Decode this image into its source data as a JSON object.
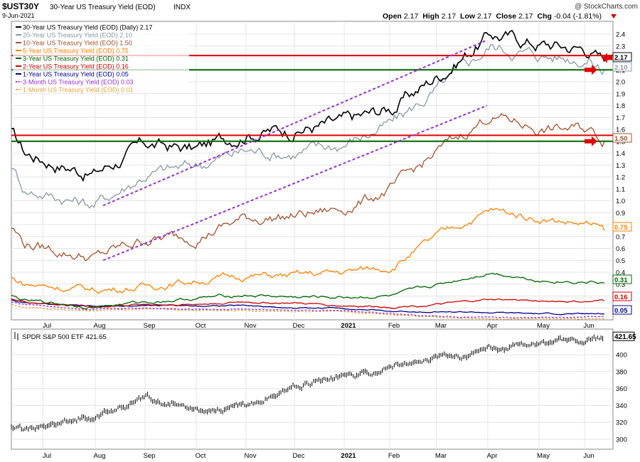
{
  "header": {
    "symbol": "$UST30Y",
    "name": "30-Year US Treasury Yield (EOD)",
    "exchange": "INDX",
    "date": "9-Jun-2021",
    "watermark": "@ StockCharts.com",
    "ohlc": {
      "open_label": "Open",
      "open": "2.17",
      "high_label": "High",
      "high": "2.17",
      "low_label": "Low",
      "low": "2.17",
      "close_label": "Close",
      "close": "2.17",
      "chg_label": "Chg",
      "chg": "-0.04 (-1.81%)"
    },
    "dropdown_icon": "triangle-down-icon"
  },
  "x_axis": {
    "labels": [
      "Jul",
      "Aug",
      "Sep",
      "Oct",
      "Nov",
      "Dec",
      "2021",
      "Feb",
      "Mar",
      "Apr",
      "May",
      "Jun"
    ]
  },
  "chart_data": [
    {
      "type": "line",
      "title": "30-Year US Treasury Yield (EOD)",
      "ylim": [
        0.0,
        2.5
      ],
      "y_ticks": [
        "2.4",
        "2.3",
        "2.2",
        "2.1",
        "2.0",
        "1.9",
        "1.8",
        "1.7",
        "1.6",
        "1.5",
        "1.4",
        "1.3",
        "1.2",
        "1.1",
        "1.0",
        "0.9",
        "0.8",
        "0.7",
        "0.6",
        "0.5",
        "0.4",
        "0.3",
        "0.2",
        "0.1"
      ],
      "x_dates": [
        "Jun-15",
        "Jul-1",
        "Aug-1",
        "Sep-1",
        "Oct-1",
        "Nov-1",
        "Dec-1",
        "Jan-1",
        "Feb-1",
        "Mar-1",
        "Apr-1",
        "May-1",
        "Jun-1",
        "Jun-9"
      ],
      "series": [
        {
          "name": "30-Year US Treasury Yield (EOD) (Daily) 2.17",
          "color": "#000000",
          "dash": false,
          "values": [
            1.57,
            1.4,
            1.23,
            1.47,
            1.43,
            1.58,
            1.6,
            1.65,
            1.78,
            2.07,
            2.4,
            2.32,
            2.28,
            2.17
          ]
        },
        {
          "name": "20-Year US Treasury Yield (EOD) 2.10",
          "color": "#8a9aa0",
          "dash": false,
          "values": [
            1.3,
            1.1,
            0.97,
            1.22,
            1.3,
            1.42,
            1.4,
            1.47,
            1.65,
            1.95,
            2.3,
            2.22,
            2.2,
            2.1
          ]
        },
        {
          "name": "10-Year US Treasury Yield (EOD) 1.50",
          "color": "#a0522d",
          "dash": false,
          "values": [
            0.78,
            0.64,
            0.52,
            0.68,
            0.7,
            0.85,
            0.87,
            0.93,
            1.1,
            1.43,
            1.72,
            1.6,
            1.6,
            1.5
          ]
        },
        {
          "name": "5-Year US Treasury Yield (EOD) 0.75",
          "color": "#ff7f00",
          "dash": false,
          "values": [
            0.35,
            0.3,
            0.25,
            0.28,
            0.33,
            0.37,
            0.37,
            0.4,
            0.45,
            0.72,
            0.92,
            0.85,
            0.8,
            0.75
          ]
        },
        {
          "name": "3-Year US Treasury Yield (EOD) 0.31",
          "color": "#006400",
          "dash": false,
          "values": [
            0.2,
            0.16,
            0.11,
            0.15,
            0.18,
            0.21,
            0.19,
            0.19,
            0.2,
            0.3,
            0.4,
            0.33,
            0.32,
            0.31
          ]
        },
        {
          "name": "2-Year US Treasury Yield (EOD) 0.16",
          "color": "#cc0000",
          "dash": false,
          "values": [
            0.18,
            0.15,
            0.11,
            0.13,
            0.13,
            0.15,
            0.14,
            0.12,
            0.11,
            0.13,
            0.17,
            0.16,
            0.15,
            0.16
          ]
        },
        {
          "name": "1-Year US Treasury Yield (EOD) 0.05",
          "color": "#00008b",
          "dash": false,
          "values": [
            0.17,
            0.14,
            0.11,
            0.12,
            0.12,
            0.12,
            0.1,
            0.1,
            0.07,
            0.07,
            0.06,
            0.05,
            0.05,
            0.05
          ]
        },
        {
          "name": "3-Month US Treasury Yield (EOD) 0.03",
          "color": "#9932cc",
          "dash": true,
          "values": [
            0.15,
            0.13,
            0.09,
            0.1,
            0.09,
            0.09,
            0.08,
            0.08,
            0.05,
            0.03,
            0.02,
            0.02,
            0.02,
            0.03
          ]
        },
        {
          "name": "1-Month US Treasury Yield (EOD) 0.01",
          "color": "#e8a23c",
          "dash": true,
          "values": [
            0.13,
            0.1,
            0.08,
            0.09,
            0.08,
            0.08,
            0.07,
            0.07,
            0.04,
            0.02,
            0.01,
            0.01,
            0.01,
            0.01
          ]
        }
      ],
      "value_labels": [
        "2.17",
        "2.10",
        "1.50",
        "0.75",
        "0.31",
        "0.16",
        "0.05"
      ],
      "value_label_colors": [
        "#000000",
        "#8a9aa0",
        "#a0522d",
        "#ff7f00",
        "#006400",
        "#cc0000",
        "#00008b"
      ],
      "horizontal_lines": [
        {
          "value": 2.22,
          "color": "#e00000"
        },
        {
          "value": 2.1,
          "color": "#006400"
        },
        {
          "value": 1.55,
          "color": "#e00000"
        },
        {
          "value": 1.5,
          "color": "#006400"
        }
      ],
      "trendlines": [
        {
          "color": "#9932cc",
          "from_date": "Aug-1",
          "from_value": 0.96,
          "to_date": "Apr-1",
          "to_value": 2.35
        },
        {
          "color": "#9932cc",
          "from_date": "Aug-1",
          "from_value": 0.5,
          "to_date": "Apr-1",
          "to_value": 1.8
        }
      ],
      "arrows": [
        {
          "value": 2.2,
          "direction": "left",
          "color": "#e00000"
        },
        {
          "value": 2.1,
          "direction": "right",
          "color": "#e00000"
        },
        {
          "value": 1.5,
          "direction": "right",
          "color": "#e00000"
        }
      ],
      "grid": true,
      "legend": "top-left"
    },
    {
      "type": "line",
      "title": "SPDR S&P 500 ETF 421.65",
      "legend_label": "SPDR S&P 500 ETF 421.65",
      "legend_icon": "price-bars-icon",
      "color": "#000000",
      "ylim": [
        290,
        430
      ],
      "y_ticks": [
        "400",
        "380",
        "360",
        "340",
        "320",
        "300"
      ],
      "last_value_label": "421.65",
      "x_dates": [
        "Jun-15",
        "Jul-1",
        "Aug-1",
        "Sep-1",
        "Oct-1",
        "Nov-1",
        "Dec-1",
        "Jan-1",
        "Feb-1",
        "Mar-1",
        "Apr-1",
        "May-1",
        "Jun-1",
        "Jun-9"
      ],
      "values": [
        313,
        309,
        328,
        348,
        334,
        340,
        362,
        373,
        386,
        398,
        405,
        418,
        419,
        421.65
      ],
      "grid": true
    }
  ]
}
